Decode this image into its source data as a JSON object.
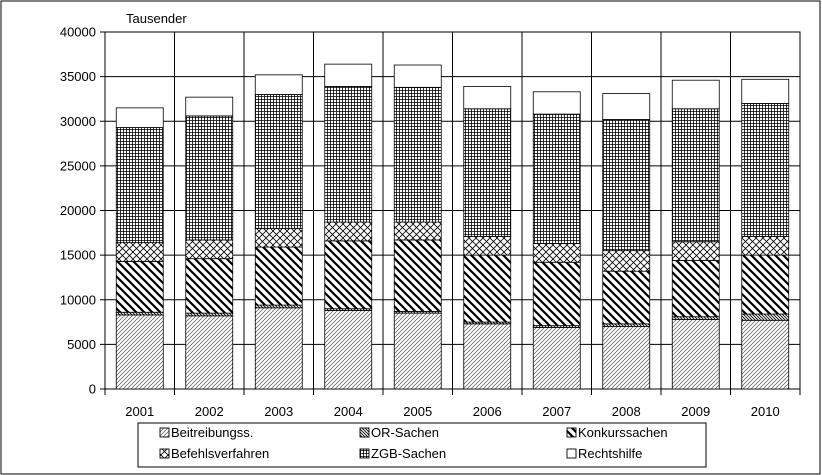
{
  "chart_data": {
    "type": "bar",
    "stacked": true,
    "title": "",
    "ylabel": "Tausender",
    "xlabel": "",
    "ylim": [
      0,
      40000
    ],
    "yticks": [
      0,
      5000,
      10000,
      15000,
      20000,
      25000,
      30000,
      35000,
      40000
    ],
    "grid": true,
    "legend_position": "bottom",
    "categories": [
      "2001",
      "2002",
      "2003",
      "2004",
      "2005",
      "2006",
      "2007",
      "2008",
      "2009",
      "2010"
    ],
    "series": [
      {
        "name": "Beitreibungss.",
        "pattern": "diagonal",
        "values": [
          8300,
          8200,
          9100,
          8800,
          8500,
          7300,
          6900,
          7000,
          7800,
          7700
        ]
      },
      {
        "name": "OR-Sachen",
        "pattern": "dense-backslash",
        "values": [
          300,
          300,
          300,
          200,
          200,
          200,
          200,
          300,
          300,
          700
        ]
      },
      {
        "name": "Konkurssachen",
        "pattern": "bold-backslash",
        "values": [
          5700,
          6100,
          6500,
          7600,
          8000,
          7500,
          7100,
          5900,
          6300,
          6600
        ]
      },
      {
        "name": "Befehlsverfahren",
        "pattern": "crosshatch",
        "values": [
          2100,
          2100,
          2100,
          2100,
          2000,
          2100,
          2100,
          2300,
          2100,
          2100
        ]
      },
      {
        "name": "ZGB-Sachen",
        "pattern": "grid",
        "values": [
          12900,
          13900,
          15000,
          15200,
          15100,
          14300,
          14500,
          14700,
          14900,
          14900
        ]
      },
      {
        "name": "Rechtshilfe",
        "pattern": "white",
        "values": [
          2200,
          2100,
          2200,
          2500,
          2500,
          2500,
          2500,
          2900,
          3200,
          2700
        ]
      }
    ]
  }
}
